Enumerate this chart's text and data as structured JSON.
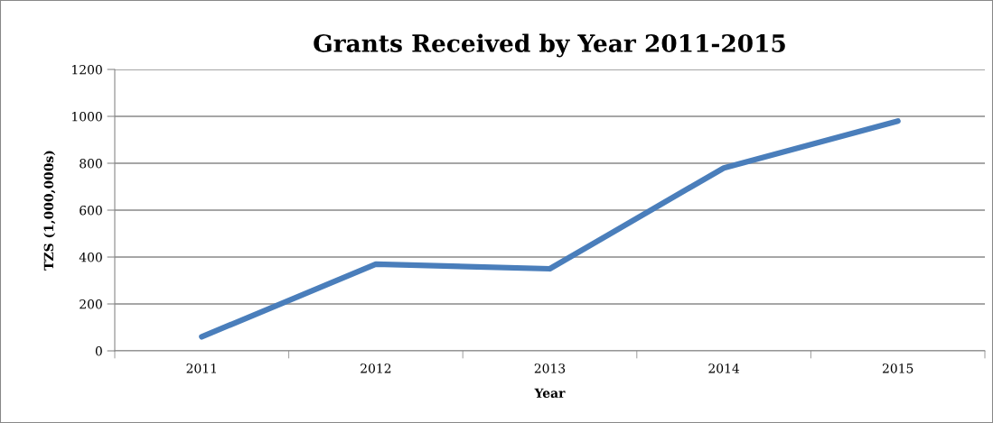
{
  "chart_data": {
    "type": "line",
    "title": "Grants Received by Year 2011-2015",
    "xlabel": "Year",
    "ylabel": "TZS (1,000,000s)",
    "categories": [
      "2011",
      "2012",
      "2013",
      "2014",
      "2015"
    ],
    "series": [
      {
        "color": "#4a7ebb",
        "values": [
          60,
          370,
          350,
          780,
          980
        ]
      }
    ],
    "ylim": [
      0,
      1200
    ],
    "yticks": [
      0,
      200,
      400,
      600,
      800,
      1000,
      1200
    ],
    "grid": "y",
    "marker": "none",
    "line_style": "solid"
  }
}
